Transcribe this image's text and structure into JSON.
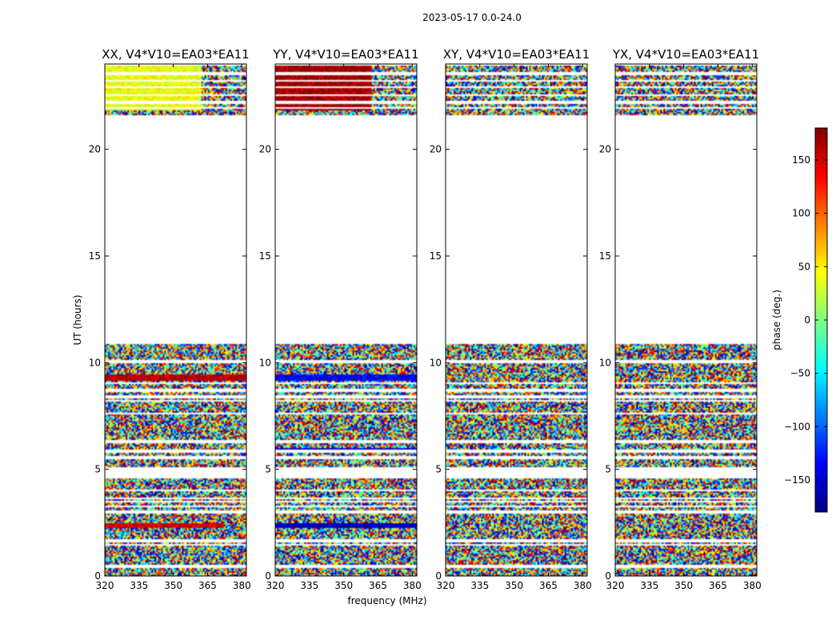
{
  "suptitle": "2023-05-17 0.0-24.0",
  "colors": {
    "background": "#ffffff",
    "axes": "#000000"
  },
  "chart_data": {
    "type": "heatmap",
    "xlabel": "frequency (MHz)",
    "ylabel": "UT (hours)",
    "xlim": [
      320,
      382
    ],
    "ylim": [
      0,
      24
    ],
    "xticks": [
      320,
      335,
      350,
      365,
      380
    ],
    "yticks": [
      0,
      5,
      10,
      15,
      20
    ],
    "colorbar": {
      "label": "phase (deg.)",
      "cmap": "jet",
      "range": [
        -180,
        180
      ],
      "ticks": [
        150,
        100,
        50,
        0,
        -50,
        -100,
        -150
      ],
      "tick_labels": [
        "150",
        "100",
        "50",
        "0",
        "−50",
        "−100",
        "−150"
      ]
    },
    "data_blocks_hours": [
      [
        0.0,
        4.6
      ],
      [
        5.1,
        6.0
      ],
      [
        6.0,
        10.9
      ],
      [
        21.6,
        23.9
      ]
    ],
    "gap_rows_hours": [
      0.45,
      1.45,
      1.65,
      3.0,
      3.25,
      3.5,
      3.65,
      4.0,
      5.55,
      5.85,
      6.3,
      7.6,
      8.2,
      8.4,
      8.7,
      9.05,
      10.05,
      21.95,
      22.2,
      22.55,
      22.9,
      23.2,
      23.55
    ],
    "panels": [
      {
        "title": "XX, V4*V10=EA03*EA11",
        "features": [
          {
            "hours": [
              2.25,
              2.45
            ],
            "phase": 150,
            "freq_to": 372
          },
          {
            "hours": [
              9.15,
              9.45
            ],
            "phase": 160,
            "freq_to": 382
          },
          {
            "hours": [
              21.8,
              23.9
            ],
            "phase": 40,
            "freq_to": 362
          }
        ]
      },
      {
        "title": "YY, V4*V10=EA03*EA11",
        "features": [
          {
            "hours": [
              2.25,
              2.5
            ],
            "phase": -160,
            "freq_to": 382
          },
          {
            "hours": [
              5.85,
              6.0
            ],
            "phase": -150,
            "freq_to": 382
          },
          {
            "hours": [
              9.15,
              9.45
            ],
            "phase": -140,
            "freq_to": 382
          },
          {
            "hours": [
              21.8,
              23.9
            ],
            "phase": 170,
            "freq_to": 362
          }
        ]
      },
      {
        "title": "XY, V4*V10=EA03*EA11",
        "features": []
      },
      {
        "title": "YX, V4*V10=EA03*EA11",
        "features": []
      }
    ]
  }
}
